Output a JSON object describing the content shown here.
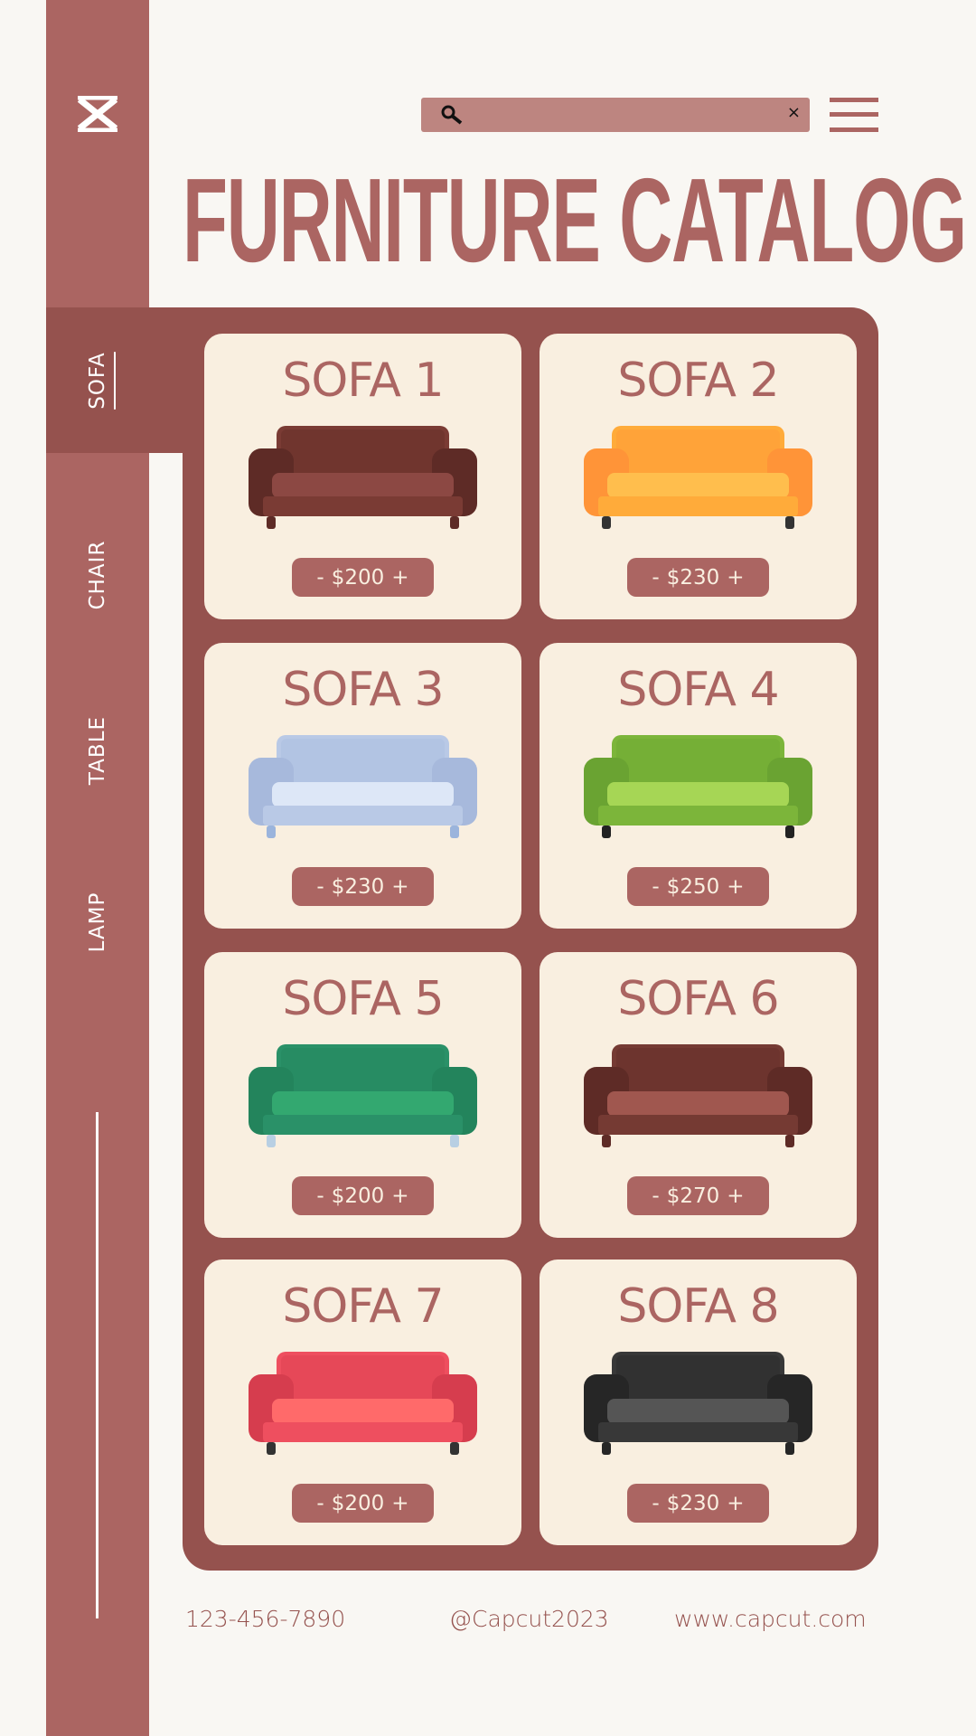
{
  "brand": {
    "logo": "capcut-logo-icon"
  },
  "header": {
    "search": {
      "value": "",
      "placeholder": "",
      "icon": "search-icon",
      "clear_label": "×"
    },
    "menu_icon": "hamburger-menu-icon",
    "title": "FURNITURE CATALOG"
  },
  "sidebar": {
    "items": [
      {
        "label": "SOFA",
        "active": true
      },
      {
        "label": "CHAIR",
        "active": false
      },
      {
        "label": "TABLE",
        "active": false
      },
      {
        "label": "LAMP",
        "active": false
      }
    ]
  },
  "products": [
    {
      "name": "SOFA 1",
      "price": "$200",
      "colors": {
        "main": "#7a3b34",
        "dark": "#5e2b26",
        "seat": "#8c4843",
        "legs": "#5e2b26"
      }
    },
    {
      "name": "SOFA 2",
      "price": "$230",
      "colors": {
        "main": "#ffab3a",
        "dark": "#ff9438",
        "seat": "#ffbe4d",
        "legs": "#333333"
      }
    },
    {
      "name": "SOFA 3",
      "price": "$230",
      "colors": {
        "main": "#b9c9e6",
        "dark": "#a7b9dc",
        "seat": "#dde7f7",
        "legs": "#9bb4dc"
      }
    },
    {
      "name": "SOFA 4",
      "price": "$250",
      "colors": {
        "main": "#7cb53a",
        "dark": "#6aa332",
        "seat": "#a6d655",
        "legs": "#222222"
      }
    },
    {
      "name": "SOFA 5",
      "price": "$200",
      "colors": {
        "main": "#2a9168",
        "dark": "#23845c",
        "seat": "#33a870",
        "legs": "#b8cfe3"
      }
    },
    {
      "name": "SOFA 6",
      "price": "$270",
      "colors": {
        "main": "#753a33",
        "dark": "#5e2b26",
        "seat": "#a0574f",
        "legs": "#5e2b26"
      }
    },
    {
      "name": "SOFA 7",
      "price": "$200",
      "colors": {
        "main": "#ee4f5f",
        "dark": "#d63d4e",
        "seat": "#ff6a6a",
        "legs": "#333333"
      }
    },
    {
      "name": "SOFA 8",
      "price": "$230",
      "colors": {
        "main": "#383838",
        "dark": "#262626",
        "seat": "#555555",
        "legs": "#262626"
      }
    }
  ],
  "price_controls": {
    "minus": "-",
    "plus": "+"
  },
  "footer": {
    "phone": "123-456-7890",
    "handle": "@Capcut2023",
    "website": "www.capcut.com"
  },
  "theme": {
    "sidebar": "#ab6562",
    "panel": "#95524e",
    "card": "#f9efe0",
    "background": "#f9f7f3",
    "search": "#bd8580"
  }
}
